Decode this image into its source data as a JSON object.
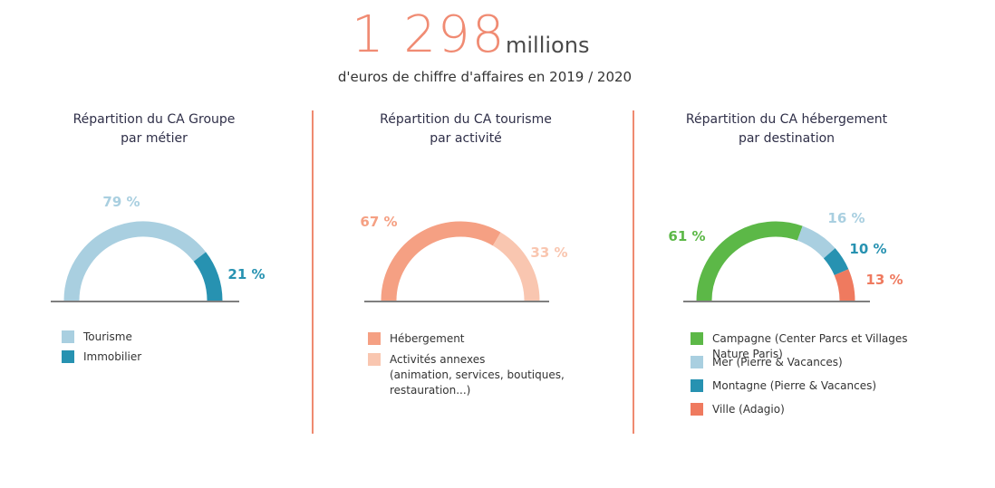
{
  "header": {
    "big_number": "1 298",
    "big_unit": "millions",
    "subtitle": "d'euros de chiffre d'affaires en 2019 / 2020"
  },
  "colors": {
    "accent": "#ef8a70",
    "tourisme": "#a9cfe0",
    "immobilier": "#2792b1",
    "hebergement": "#f5a083",
    "activites": "#f9c6b0",
    "campagne": "#5cb847",
    "mer": "#a9cfe0",
    "montagne": "#2792b1",
    "ville": "#ef7a5f"
  },
  "chart_data": [
    {
      "type": "pie",
      "title": "Répartition du CA Groupe par métier",
      "title_lines": [
        "Répartition du CA Groupe",
        "par métier"
      ],
      "categories": [
        "Tourisme",
        "Immobilier"
      ],
      "values": [
        79,
        21
      ],
      "value_labels": [
        "79 %",
        "21 %"
      ],
      "legend": [
        {
          "lines": [
            "Tourisme"
          ]
        },
        {
          "lines": [
            "Immobilier"
          ]
        }
      ],
      "colors": [
        "#a9cfe0",
        "#2792b1"
      ]
    },
    {
      "type": "pie",
      "title": "Répartition du CA tourisme par activité",
      "title_lines": [
        "Répartition du CA tourisme",
        "par activité"
      ],
      "categories": [
        "Hébergement",
        "Activités annexes (animation, services, boutiques, restauration...)"
      ],
      "values": [
        67,
        33
      ],
      "value_labels": [
        "67 %",
        "33 %"
      ],
      "legend": [
        {
          "lines": [
            "Hébergement"
          ]
        },
        {
          "lines": [
            "Activités annexes",
            "(animation, services, boutiques,",
            "restauration...)"
          ]
        }
      ],
      "colors": [
        "#f5a083",
        "#f9c6b0"
      ]
    },
    {
      "type": "pie",
      "title": "Répartition du CA hébergement par destination",
      "title_lines": [
        "Répartition du CA hébergement",
        "par destination"
      ],
      "categories": [
        "Campagne (Center Parcs et Villages Nature Paris)",
        "Mer (Pierre & Vacances)",
        "Montagne (Pierre & Vacances)",
        "Ville (Adagio)"
      ],
      "values": [
        61,
        16,
        10,
        13
      ],
      "value_labels": [
        "61 %",
        "16 %",
        "10 %",
        "13 %"
      ],
      "legend": [
        {
          "lines": [
            "Campagne (Center Parcs et Villages Nature Paris)"
          ]
        },
        {
          "lines": [
            "Mer (Pierre & Vacances)"
          ]
        },
        {
          "lines": [
            "Montagne (Pierre & Vacances)"
          ]
        },
        {
          "lines": [
            "Ville (Adagio)"
          ]
        }
      ],
      "colors": [
        "#5cb847",
        "#a9cfe0",
        "#2792b1",
        "#ef7a5f"
      ]
    }
  ]
}
